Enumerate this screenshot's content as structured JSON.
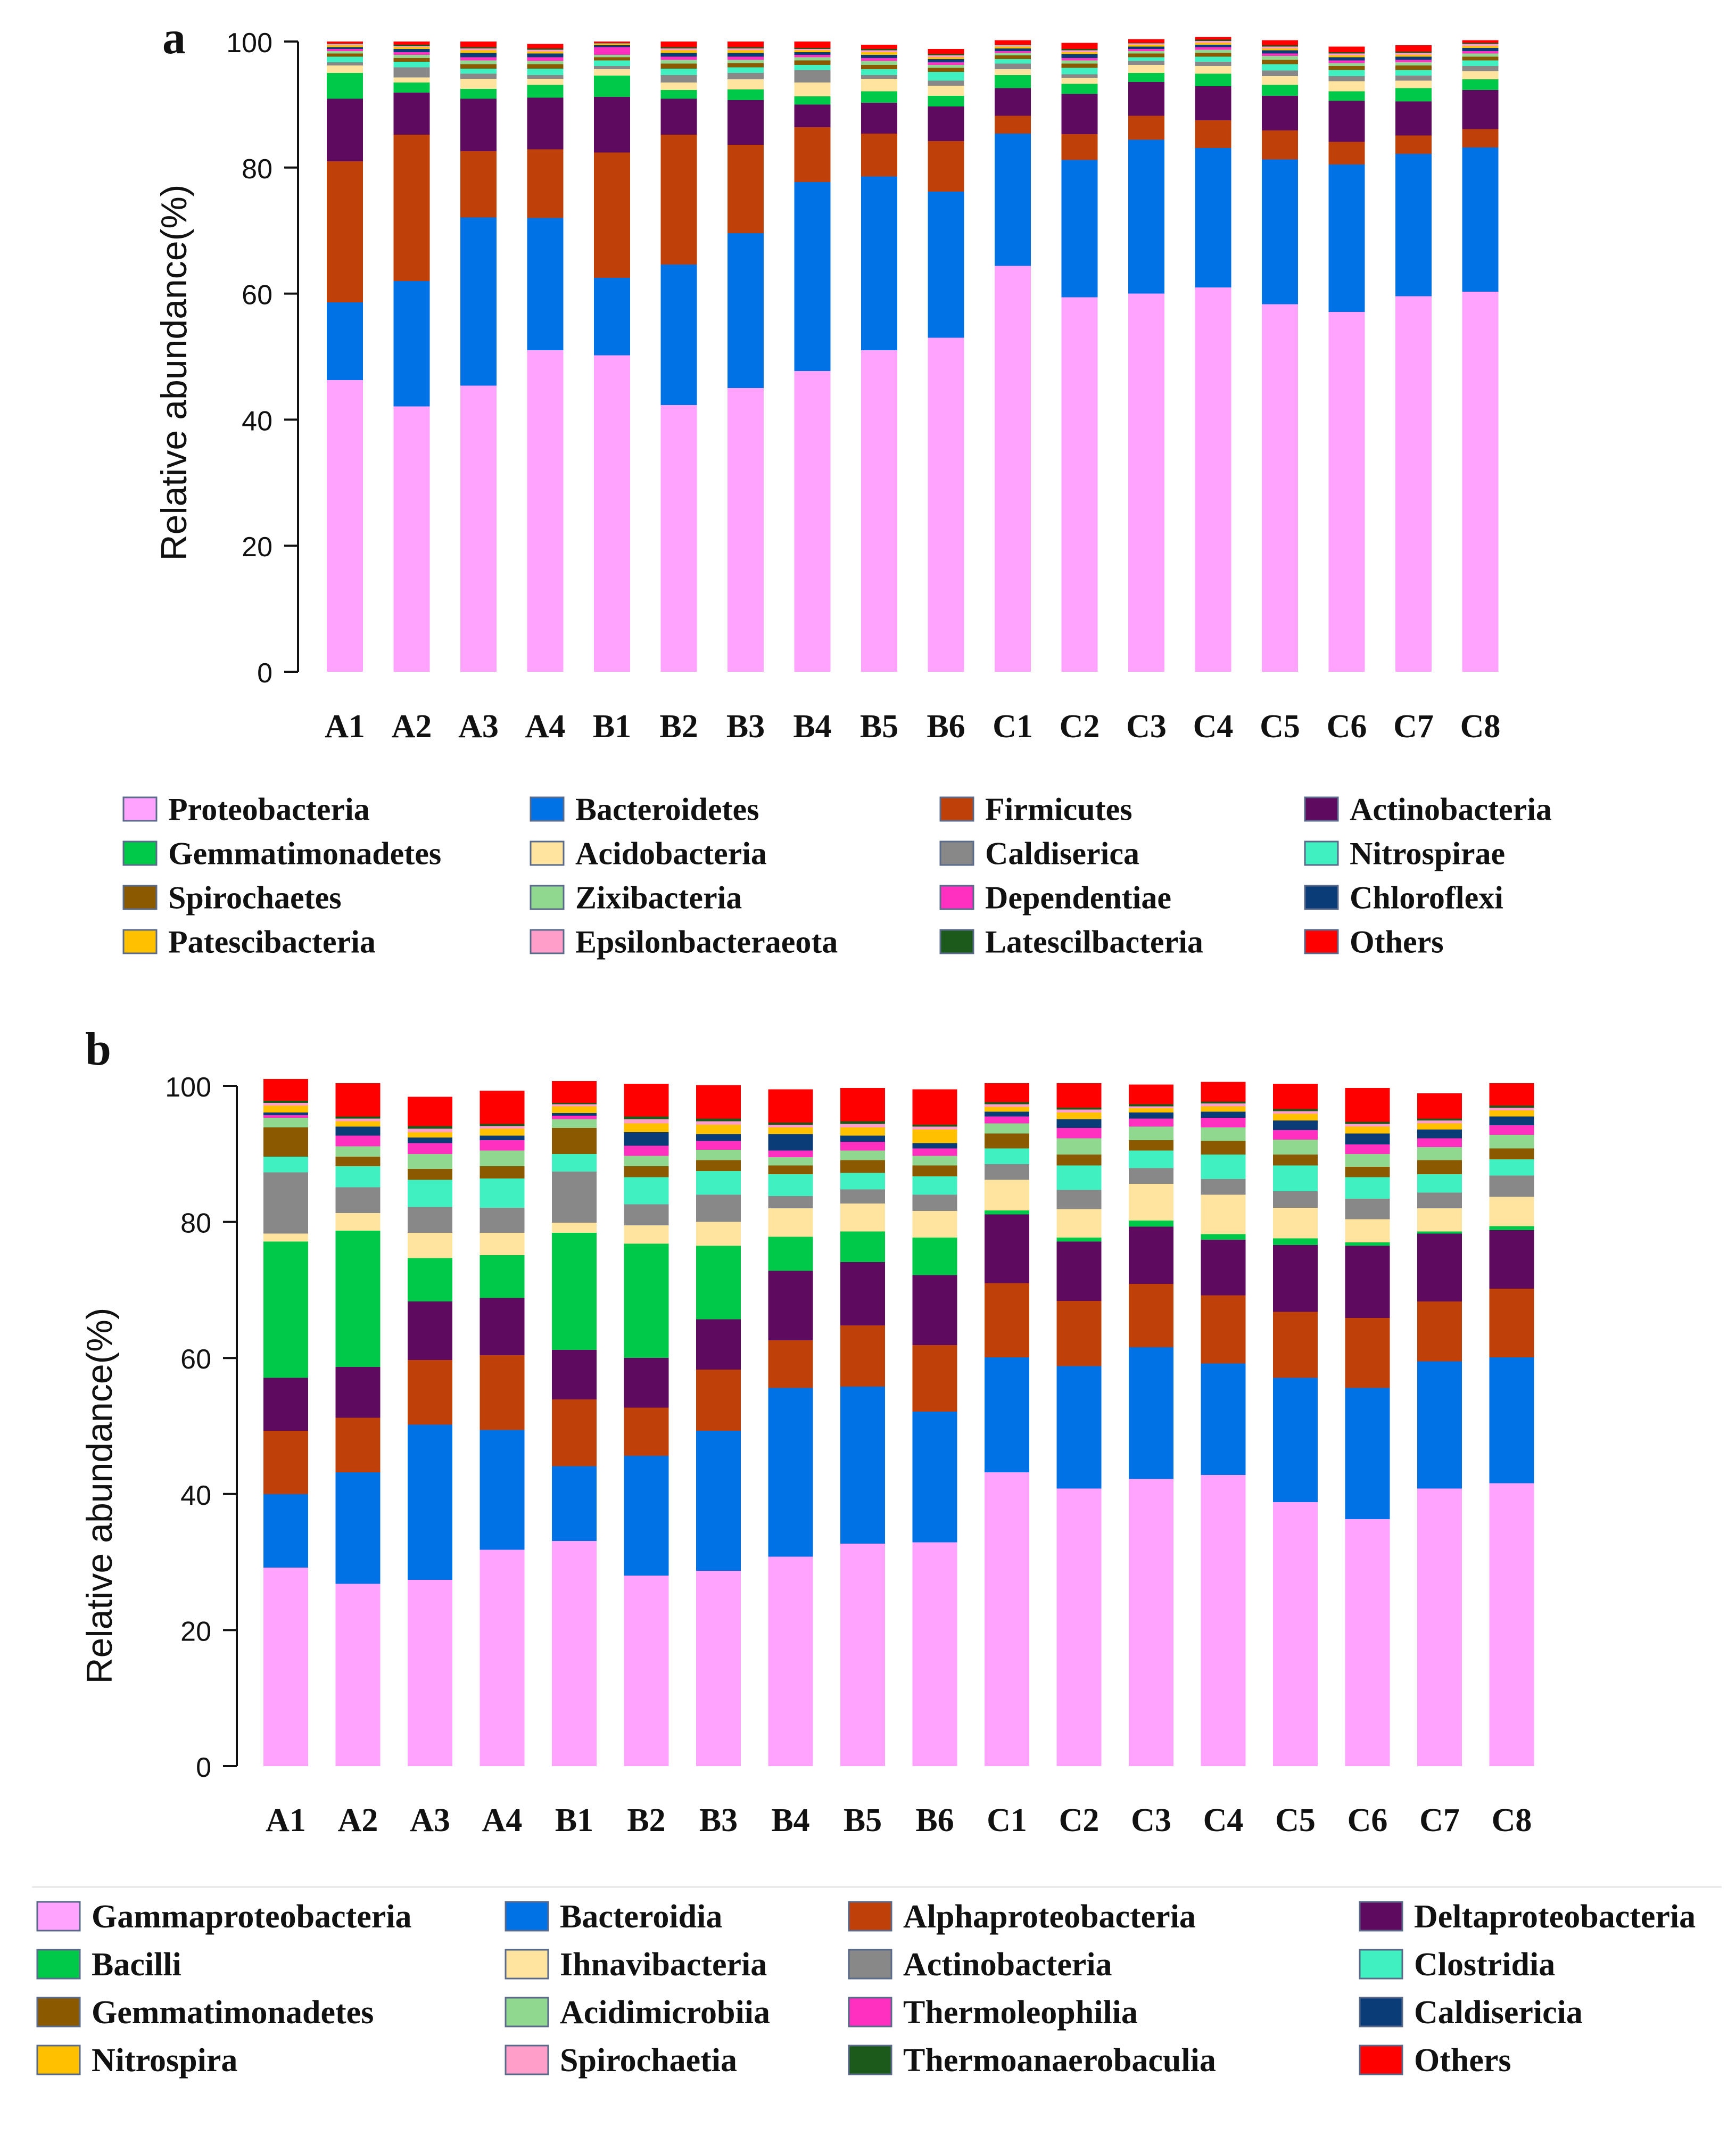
{
  "chart_data": [
    {
      "type": "bar",
      "stacked": true,
      "panel_label": "a",
      "ylabel": "Relative abundance(%)",
      "ylim": [
        0,
        100
      ],
      "y_ticks": [
        "0",
        "20",
        "40",
        "60",
        "80",
        "100"
      ],
      "categories": [
        "A1",
        "A2",
        "A3",
        "A4",
        "B1",
        "B2",
        "B3",
        "B4",
        "B5",
        "B6",
        "C1",
        "C2",
        "C3",
        "C4",
        "C5",
        "C6",
        "C7",
        "C8"
      ],
      "series": [
        {
          "name": "Proteobacteria",
          "color": "#FFA3FF",
          "values": [
            46.3,
            42.1,
            45.4,
            51.0,
            50.2,
            42.3,
            45.0,
            47.7,
            51.0,
            53.0,
            64.4,
            59.4,
            60.0,
            61.0,
            58.3,
            57.1,
            59.6,
            60.3
          ]
        },
        {
          "name": "Bacteroidetes",
          "color": "#0072E6",
          "values": [
            12.3,
            19.9,
            26.7,
            21.0,
            12.3,
            22.3,
            24.6,
            30.0,
            27.6,
            23.2,
            21.0,
            21.8,
            24.4,
            22.1,
            23.0,
            23.4,
            22.6,
            22.9
          ]
        },
        {
          "name": "Firmicutes",
          "color": "#C0400A",
          "values": [
            22.4,
            23.2,
            10.5,
            10.9,
            19.9,
            20.6,
            14.0,
            8.7,
            6.8,
            8.0,
            2.8,
            4.1,
            3.8,
            4.4,
            4.6,
            3.6,
            2.9,
            2.9
          ]
        },
        {
          "name": "Actinobacteria",
          "color": "#5E0A5E",
          "values": [
            9.9,
            6.7,
            8.3,
            8.2,
            8.8,
            5.7,
            7.1,
            3.6,
            4.9,
            5.5,
            4.4,
            6.4,
            5.4,
            5.4,
            5.5,
            6.5,
            5.4,
            6.2
          ]
        },
        {
          "name": "Gemmatimonadetes",
          "color": "#00C848",
          "values": [
            4.1,
            1.6,
            1.6,
            2.0,
            3.4,
            1.4,
            1.7,
            1.3,
            1.8,
            1.7,
            2.1,
            1.6,
            1.4,
            2.0,
            1.7,
            1.5,
            2.1,
            1.7
          ]
        },
        {
          "name": "Acidobacteria",
          "color": "#FFE4A0",
          "values": [
            1.2,
            0.8,
            1.6,
            1.0,
            1.0,
            1.2,
            1.6,
            2.2,
            2.0,
            1.6,
            0.9,
            0.9,
            1.3,
            1.2,
            1.4,
            1.6,
            1.2,
            1.3
          ]
        },
        {
          "name": "Caldiserica",
          "color": "#888888",
          "values": [
            0.5,
            1.6,
            0.8,
            0.6,
            0.5,
            1.2,
            1.0,
            2.0,
            0.6,
            0.8,
            0.9,
            0.6,
            0.6,
            0.7,
            0.9,
            0.8,
            0.8,
            0.8
          ]
        },
        {
          "name": "Nitrospirae",
          "color": "#40F0C0",
          "values": [
            0.9,
            0.9,
            0.8,
            1.0,
            0.9,
            1.0,
            0.9,
            0.8,
            0.9,
            1.4,
            0.7,
            1.0,
            0.6,
            0.8,
            1.0,
            1.0,
            0.9,
            0.9
          ]
        },
        {
          "name": "Spirochaetes",
          "color": "#8B5A00",
          "values": [
            0.5,
            0.6,
            0.7,
            0.7,
            0.5,
            0.8,
            0.7,
            0.7,
            0.7,
            0.6,
            0.6,
            0.7,
            0.6,
            0.6,
            0.7,
            0.6,
            0.7,
            0.6
          ]
        },
        {
          "name": "Zixibacteria",
          "color": "#90D890",
          "values": [
            0.4,
            0.5,
            0.6,
            0.5,
            0.4,
            0.6,
            0.5,
            0.5,
            0.6,
            0.5,
            0.4,
            0.5,
            0.4,
            0.5,
            0.6,
            0.5,
            0.5,
            0.5
          ]
        },
        {
          "name": "Dependentiae",
          "color": "#FF30C0",
          "values": [
            0.3,
            0.4,
            0.5,
            0.6,
            1.2,
            0.5,
            0.5,
            0.4,
            0.5,
            0.4,
            0.3,
            0.4,
            0.3,
            0.4,
            0.4,
            0.4,
            0.4,
            0.4
          ]
        },
        {
          "name": "Chloroflexi",
          "color": "#0A3C78",
          "values": [
            0.3,
            0.5,
            0.7,
            0.6,
            0.3,
            0.6,
            0.6,
            0.4,
            0.5,
            0.5,
            0.4,
            0.6,
            0.4,
            0.4,
            0.5,
            0.5,
            0.5,
            0.5
          ]
        },
        {
          "name": "Patescibacteria",
          "color": "#FFC000",
          "values": [
            0.3,
            0.3,
            0.4,
            0.3,
            0.2,
            0.4,
            0.4,
            0.3,
            0.4,
            0.3,
            0.3,
            0.3,
            0.3,
            0.3,
            0.3,
            0.3,
            0.3,
            0.3
          ]
        },
        {
          "name": "Epsilonbacteraeota",
          "color": "#FF9EC8",
          "values": [
            0.2,
            0.2,
            0.3,
            0.3,
            0.1,
            0.3,
            0.3,
            0.2,
            0.3,
            0.3,
            0.2,
            0.3,
            0.2,
            0.3,
            0.3,
            0.3,
            0.3,
            0.3
          ]
        },
        {
          "name": "Latescilbacteria",
          "color": "#1C5A1C",
          "values": [
            0.1,
            0.2,
            0.2,
            0.2,
            0.1,
            0.2,
            0.2,
            0.2,
            0.2,
            0.2,
            0.1,
            0.2,
            0.1,
            0.2,
            0.2,
            0.2,
            0.2,
            0.2
          ]
        },
        {
          "name": "Others",
          "color": "#FF0000",
          "values": [
            0.3,
            0.5,
            0.9,
            0.7,
            0.2,
            0.9,
            0.9,
            1.0,
            0.7,
            0.8,
            0.7,
            1.0,
            0.6,
            0.4,
            0.8,
            0.9,
            1.0,
            0.4
          ]
        }
      ]
    },
    {
      "type": "bar",
      "stacked": true,
      "panel_label": "b",
      "ylabel": "Relative abundance(%)",
      "ylim": [
        0,
        100
      ],
      "y_ticks": [
        "0",
        "20",
        "40",
        "60",
        "80",
        "100"
      ],
      "categories": [
        "A1",
        "A2",
        "A3",
        "A4",
        "B1",
        "B2",
        "B3",
        "B4",
        "B5",
        "B6",
        "C1",
        "C2",
        "C3",
        "C4",
        "C5",
        "C6",
        "C7",
        "C8"
      ],
      "series": [
        {
          "name": "Gammaproteobacteria",
          "color": "#FFA3FF",
          "values": [
            29.2,
            26.8,
            27.4,
            31.8,
            33.1,
            28.0,
            28.7,
            30.8,
            32.7,
            32.9,
            43.2,
            40.8,
            42.2,
            42.8,
            38.8,
            36.3,
            40.8,
            41.6
          ]
        },
        {
          "name": "Bacteroidia",
          "color": "#0072E6",
          "values": [
            10.8,
            16.4,
            22.8,
            17.6,
            11.0,
            17.6,
            20.6,
            24.8,
            23.1,
            19.2,
            16.9,
            18.0,
            19.4,
            16.4,
            18.3,
            19.3,
            18.7,
            18.5
          ]
        },
        {
          "name": "Alphaproteobacteria",
          "color": "#C0400A",
          "values": [
            9.3,
            8.0,
            9.5,
            11.0,
            9.8,
            7.1,
            9.0,
            7.0,
            9.0,
            9.8,
            10.9,
            9.6,
            9.3,
            10.0,
            9.7,
            10.3,
            8.8,
            10.1
          ]
        },
        {
          "name": "Deltaproteobacteria",
          "color": "#5E0A5E",
          "values": [
            7.8,
            7.5,
            8.6,
            8.4,
            7.3,
            7.3,
            7.4,
            10.2,
            9.3,
            10.3,
            10.1,
            8.7,
            8.4,
            8.2,
            9.8,
            10.6,
            10.0,
            8.6
          ]
        },
        {
          "name": "Bacilli",
          "color": "#00C848",
          "values": [
            20.0,
            20.0,
            6.4,
            6.3,
            17.2,
            16.8,
            10.8,
            5.0,
            4.5,
            5.5,
            0.6,
            0.6,
            0.9,
            0.8,
            1.0,
            0.5,
            0.3,
            0.6
          ]
        },
        {
          "name": "Ihnavibacteria",
          "color": "#FFE4A0",
          "values": [
            1.2,
            2.6,
            3.7,
            3.3,
            1.5,
            2.7,
            3.5,
            4.2,
            4.1,
            3.9,
            4.5,
            4.2,
            5.4,
            5.8,
            4.5,
            3.4,
            3.4,
            4.3
          ]
        },
        {
          "name": "Actinobacteria",
          "color": "#888888",
          "values": [
            9.0,
            3.8,
            3.8,
            3.7,
            7.5,
            3.1,
            4.0,
            1.8,
            2.1,
            2.4,
            2.3,
            2.8,
            2.3,
            2.3,
            2.4,
            3.0,
            2.3,
            3.1
          ]
        },
        {
          "name": "Clostridia",
          "color": "#40F0C0",
          "values": [
            2.3,
            3.1,
            4.0,
            4.3,
            2.6,
            4.0,
            3.5,
            3.2,
            2.4,
            2.7,
            2.3,
            3.6,
            2.6,
            3.6,
            3.8,
            3.2,
            2.7,
            2.4
          ]
        },
        {
          "name": "Gemmatimonadetes",
          "color": "#8B5A00",
          "values": [
            4.3,
            1.4,
            1.6,
            1.8,
            3.8,
            1.6,
            1.6,
            1.3,
            1.9,
            1.6,
            2.2,
            1.6,
            1.5,
            2.0,
            1.6,
            1.5,
            2.1,
            1.6
          ]
        },
        {
          "name": "Acidimicrobiia",
          "color": "#90D890",
          "values": [
            1.4,
            1.5,
            2.2,
            2.3,
            1.3,
            1.5,
            1.5,
            1.2,
            1.4,
            1.4,
            1.5,
            2.4,
            2.0,
            2.0,
            2.2,
            1.9,
            1.9,
            2.0
          ]
        },
        {
          "name": "Thermoleophilia",
          "color": "#FF30C0",
          "values": [
            0.4,
            1.6,
            1.6,
            1.5,
            0.5,
            1.5,
            1.3,
            1.0,
            1.3,
            1.1,
            1.0,
            1.5,
            1.2,
            1.4,
            1.4,
            1.4,
            1.3,
            1.4
          ]
        },
        {
          "name": "Caldisericia",
          "color": "#0A3C78",
          "values": [
            0.4,
            1.3,
            0.8,
            0.7,
            0.4,
            2.0,
            1.0,
            2.4,
            0.9,
            0.8,
            0.7,
            1.3,
            0.9,
            0.9,
            1.4,
            1.6,
            1.3,
            1.3
          ]
        },
        {
          "name": "Nitrospira",
          "color": "#FFC000",
          "values": [
            1.0,
            0.8,
            0.8,
            1.0,
            1.0,
            1.3,
            1.4,
            1.0,
            1.2,
            2.0,
            0.7,
            1.0,
            0.6,
            0.8,
            1.0,
            1.0,
            0.9,
            0.9
          ]
        },
        {
          "name": "Spirochaetia",
          "color": "#FF9EC8",
          "values": [
            0.4,
            0.4,
            0.5,
            0.4,
            0.3,
            0.6,
            0.5,
            0.4,
            0.5,
            0.4,
            0.4,
            0.4,
            0.3,
            0.4,
            0.4,
            0.4,
            0.4,
            0.4
          ]
        },
        {
          "name": "Thermoanaerobaculia",
          "color": "#1C5A1C",
          "values": [
            0.3,
            0.3,
            0.4,
            0.3,
            0.2,
            0.4,
            0.4,
            0.3,
            0.4,
            0.3,
            0.3,
            0.3,
            0.3,
            0.3,
            0.3,
            0.3,
            0.3,
            0.3
          ]
        },
        {
          "name": "Others",
          "color": "#FF0000",
          "values": [
            3.2,
            4.9,
            4.3,
            4.9,
            3.2,
            4.8,
            4.9,
            4.9,
            4.9,
            5.2,
            2.8,
            3.6,
            2.9,
            2.9,
            3.7,
            5.0,
            3.7,
            3.3
          ]
        }
      ]
    }
  ]
}
